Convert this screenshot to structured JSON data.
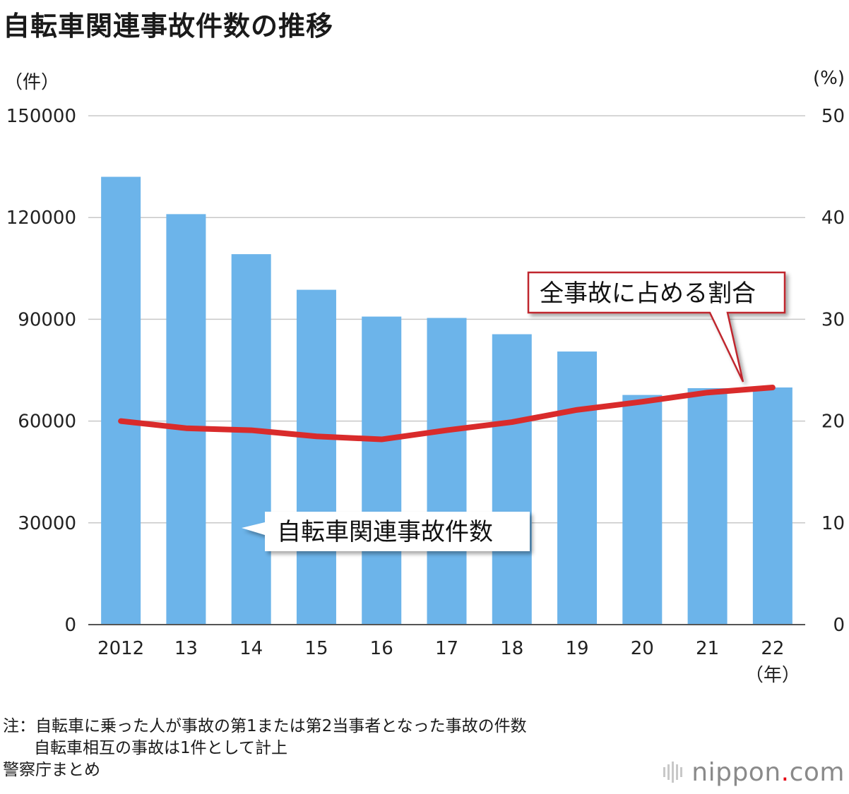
{
  "title": "自転車関連事故件数の推移",
  "axis": {
    "left_unit": "（件）",
    "right_unit": "(%)",
    "year_unit": "（年）"
  },
  "callouts": {
    "share": "全事故に占める割合",
    "count": "自転車関連事故件数"
  },
  "notes": {
    "line1": "注：自転車に乗った人が事故の第1または第2当事者となった事故の件数",
    "line2": "自転車相互の事故は1件として計上",
    "source": "警察庁まとめ"
  },
  "logo": {
    "main": "nippon",
    "dot": ".",
    "suffix": "com"
  },
  "colors": {
    "bar": "#6cb4ea",
    "line": "#d92b2b",
    "grid": "#c8c8c8",
    "callout_border": "#c0282d"
  },
  "chart_data": {
    "type": "bar",
    "categories": [
      "2012",
      "13",
      "14",
      "15",
      "16",
      "17",
      "18",
      "19",
      "20",
      "21",
      "22"
    ],
    "ylim": [
      0,
      150000
    ],
    "y2lim": [
      0,
      50
    ],
    "yticks": [
      "0",
      "30000",
      "60000",
      "90000",
      "120000",
      "150000"
    ],
    "y2ticks": [
      "0",
      "10",
      "20",
      "30",
      "40",
      "50"
    ],
    "series": [
      {
        "name": "自転車関連事故件数",
        "type": "bar",
        "axis": "left",
        "values": [
          132000,
          121000,
          109200,
          98700,
          90800,
          90400,
          85600,
          80500,
          67700,
          69700,
          69900
        ]
      },
      {
        "name": "全事故に占める割合",
        "type": "line",
        "axis": "right",
        "values": [
          20.0,
          19.3,
          19.1,
          18.5,
          18.2,
          19.1,
          19.9,
          21.1,
          21.9,
          22.8,
          23.3
        ]
      }
    ],
    "grid": true
  }
}
